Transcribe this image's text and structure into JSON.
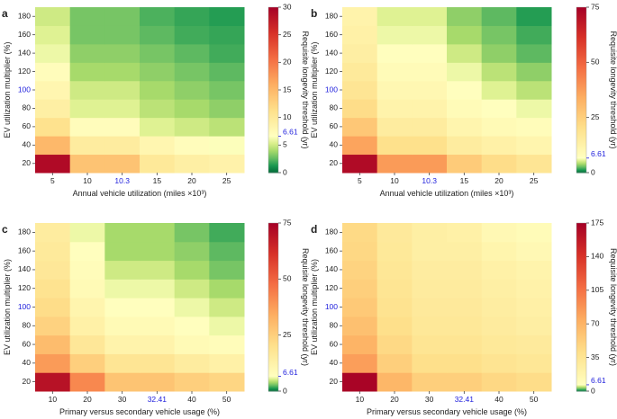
{
  "figure": {
    "colorbar_ticks_color": "#2222dd",
    "highlight_color": "#2222dd"
  },
  "chart_data": [
    {
      "panel": "a",
      "type": "heatmap",
      "xlabel": "Annual vehicle utilization (miles ×10³)",
      "ylabel": "EV utilization multiplier (%)",
      "colorbar_label": "Requisite longevity threshold (yr)",
      "x": [
        "5",
        "10",
        "10.3",
        "15",
        "20",
        "25"
      ],
      "y": [
        "20",
        "40",
        "60",
        "80",
        "100",
        "120",
        "140",
        "160",
        "180"
      ],
      "highlight_x": "10.3",
      "highlight_y": "100",
      "x_ticks": [
        "5",
        "10",
        "10.3",
        "15",
        "20",
        "25"
      ],
      "y_ticks": [
        "20",
        "40",
        "60",
        "80",
        "100",
        "120",
        "140",
        "160",
        "180"
      ],
      "zlim": [
        0,
        30
      ],
      "cbar_ticks": [
        "0",
        "5",
        "10",
        "15",
        "20",
        "25",
        "30"
      ],
      "cbar_special": "6.61",
      "cbar_special_value": 6.61,
      "z": [
        [
          29,
          14,
          14,
          10,
          9,
          8.5
        ],
        [
          15,
          9.5,
          9.5,
          8,
          7,
          6.5
        ],
        [
          11,
          7,
          7,
          5.5,
          5,
          4.5
        ],
        [
          9,
          5.5,
          5.5,
          4.5,
          4,
          3.5
        ],
        [
          8,
          5,
          5,
          4,
          3.5,
          3
        ],
        [
          7,
          4,
          4,
          3.5,
          3,
          2.5
        ],
        [
          6,
          3.5,
          3.5,
          3,
          2.5,
          2
        ],
        [
          5.5,
          3,
          3,
          2.5,
          2,
          1.8
        ],
        [
          5,
          3,
          3,
          2.2,
          1.8,
          1.5
        ]
      ]
    },
    {
      "panel": "b",
      "type": "heatmap",
      "xlabel": "Annual vehicle utilization (miles ×10³)",
      "ylabel": "EV utilization multiplier (%)",
      "colorbar_label": "Requisite longevity threshold (yr)",
      "x": [
        "5",
        "10",
        "10.3",
        "15",
        "20",
        "25"
      ],
      "y": [
        "20",
        "40",
        "60",
        "80",
        "100",
        "120",
        "140",
        "160",
        "180"
      ],
      "highlight_x": "10.3",
      "highlight_y": "100",
      "x_ticks": [
        "5",
        "10",
        "10.3",
        "15",
        "20",
        "25"
      ],
      "y_ticks": [
        "20",
        "40",
        "60",
        "80",
        "100",
        "120",
        "140",
        "160",
        "180"
      ],
      "zlim": [
        0,
        75
      ],
      "cbar_ticks": [
        "0",
        "25",
        "50",
        "75"
      ],
      "cbar_special": "6.61",
      "cbar_special_value": 6.61,
      "z": [
        [
          72,
          38,
          38,
          26,
          21,
          18
        ],
        [
          36,
          20,
          20,
          15,
          13,
          11
        ],
        [
          27,
          15,
          15,
          11,
          9,
          8
        ],
        [
          21,
          12,
          12,
          8.5,
          7,
          6
        ],
        [
          18,
          10,
          10,
          7,
          5.5,
          4.5
        ],
        [
          16,
          8.5,
          8.5,
          6,
          4.5,
          3.5
        ],
        [
          14,
          7,
          7,
          5,
          3.5,
          2.5
        ],
        [
          13,
          6,
          6,
          4,
          3,
          2
        ],
        [
          12,
          5.5,
          5.5,
          3.5,
          2.5,
          1.5
        ]
      ]
    },
    {
      "panel": "c",
      "type": "heatmap",
      "xlabel": "Primary versus secondary vehicle usage (%)",
      "ylabel": "EV utilization multiplier (%)",
      "colorbar_label": "Requisite longevity threshold (yr)",
      "x": [
        "10",
        "20",
        "30",
        "32.41",
        "40",
        "50"
      ],
      "y": [
        "20",
        "40",
        "60",
        "80",
        "100",
        "120",
        "140",
        "160",
        "180"
      ],
      "highlight_x": "32.41",
      "highlight_y": "100",
      "x_ticks": [
        "10",
        "20",
        "30",
        "32.41",
        "40",
        "50"
      ],
      "y_ticks": [
        "20",
        "40",
        "60",
        "80",
        "100",
        "120",
        "140",
        "160",
        "180"
      ],
      "zlim": [
        0,
        75
      ],
      "cbar_ticks": [
        "0",
        "25",
        "50",
        "75"
      ],
      "cbar_special": "6.61",
      "cbar_special_value": 6.61,
      "z": [
        [
          70,
          42,
          28,
          28,
          25,
          23
        ],
        [
          38,
          25,
          18,
          18,
          15,
          13
        ],
        [
          30,
          17,
          12,
          12,
          9,
          8
        ],
        [
          24,
          13,
          9,
          9,
          7,
          6
        ],
        [
          21,
          11,
          7,
          7,
          6,
          5
        ],
        [
          19,
          9,
          6,
          6,
          5,
          4
        ],
        [
          17,
          8,
          5,
          5,
          4,
          3
        ],
        [
          16,
          7,
          4,
          4,
          3.5,
          2.5
        ],
        [
          15,
          6,
          4,
          4,
          3,
          2
        ]
      ]
    },
    {
      "panel": "d",
      "type": "heatmap",
      "xlabel": "Primary versus secondary vehicle usage (%)",
      "ylabel": "EV utilization multiplier (%)",
      "colorbar_label": "Requisite longevity threshold (yr)",
      "x": [
        "10",
        "20",
        "30",
        "32.41",
        "40",
        "50"
      ],
      "y": [
        "20",
        "40",
        "60",
        "80",
        "100",
        "120",
        "140",
        "160",
        "180"
      ],
      "highlight_x": "32.41",
      "highlight_y": "100",
      "x_ticks": [
        "10",
        "20",
        "30",
        "32.41",
        "40",
        "50"
      ],
      "y_ticks": [
        "20",
        "40",
        "60",
        "80",
        "100",
        "120",
        "140",
        "160",
        "180"
      ],
      "zlim": [
        0,
        175
      ],
      "cbar_ticks": [
        "0",
        "35",
        "70",
        "105",
        "140",
        "175"
      ],
      "cbar_special": "6.61",
      "cbar_special_value": 6.61,
      "z": [
        [
          172,
          68,
          52,
          52,
          46,
          42
        ],
        [
          82,
          52,
          40,
          40,
          36,
          33
        ],
        [
          70,
          45,
          35,
          35,
          31,
          29
        ],
        [
          62,
          40,
          32,
          32,
          28,
          25
        ],
        [
          56,
          37,
          30,
          30,
          26,
          23
        ],
        [
          52,
          35,
          28,
          28,
          24,
          21
        ],
        [
          49,
          33,
          27,
          27,
          22,
          19
        ],
        [
          46,
          31,
          24,
          24,
          18,
          14
        ],
        [
          44,
          30,
          24,
          22,
          14,
          11
        ]
      ]
    }
  ]
}
